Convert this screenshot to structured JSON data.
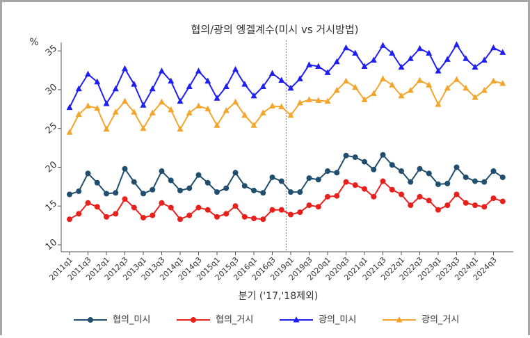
{
  "chart_data": {
    "type": "line",
    "title": "협의/광의 엥겔계수(미시 vs 거시방법)",
    "y_label": "%",
    "x_label": "분기 ('17,'18제외)",
    "categories": [
      "2011q1",
      null,
      "2011q3",
      null,
      "2012q1",
      null,
      "2012q3",
      null,
      "2013q1",
      null,
      "2013q3",
      null,
      "2014q1",
      null,
      "2014q3",
      null,
      "2015q1",
      null,
      "2015q3",
      null,
      "2016q1",
      null,
      "2016q3",
      null,
      "2019q1",
      null,
      "2019q3",
      null,
      "2020q1",
      null,
      "2020q3",
      null,
      "2021q1",
      null,
      "2021q3",
      null,
      "2022q1",
      null,
      "2022q3",
      null,
      "2023q1",
      null,
      "2023q3",
      null,
      "2024q1",
      null,
      "2024q3",
      null
    ],
    "ylim": [
      10,
      36
    ],
    "yticks": [
      10,
      15,
      20,
      25,
      30,
      35
    ],
    "grid": false,
    "series": [
      {
        "name": "협의_미시",
        "color": "#1f4e6e",
        "marker": "circle",
        "values": [
          16.5,
          16.9,
          19.2,
          18.0,
          16.6,
          16.7,
          19.8,
          18.1,
          16.6,
          17.1,
          19.5,
          18.3,
          17.0,
          17.3,
          19.0,
          18.0,
          16.8,
          17.3,
          19.3,
          17.6,
          17.0,
          16.7,
          18.7,
          18.2,
          16.8,
          16.8,
          18.6,
          18.4,
          19.5,
          19.3,
          21.5,
          21.3,
          20.7,
          19.7,
          21.6,
          20.3,
          19.5,
          18.1,
          19.8,
          19.2,
          17.8,
          17.9,
          20.0,
          18.7,
          18.2,
          18.1,
          19.5,
          18.7
        ]
      },
      {
        "name": "협의_거시",
        "color": "#e8201c",
        "marker": "circle",
        "values": [
          13.3,
          14.0,
          15.4,
          14.9,
          13.6,
          14.0,
          15.9,
          14.8,
          13.5,
          13.8,
          15.4,
          14.8,
          13.3,
          13.8,
          14.8,
          14.5,
          13.6,
          14.0,
          15.0,
          13.6,
          13.4,
          13.3,
          14.5,
          14.5,
          13.9,
          14.2,
          15.1,
          14.9,
          16.2,
          16.3,
          18.1,
          17.7,
          17.2,
          16.2,
          18.2,
          17.1,
          16.5,
          15.1,
          16.2,
          15.7,
          14.5,
          15.1,
          16.5,
          15.4,
          15.1,
          14.9,
          16.0,
          15.6
        ]
      },
      {
        "name": "광의_미시",
        "color": "#1f1ff0",
        "marker": "triangle",
        "values": [
          27.7,
          30.1,
          32.0,
          31.0,
          28.2,
          30.1,
          32.7,
          30.7,
          28.0,
          30.1,
          32.4,
          31.1,
          28.5,
          30.4,
          32.4,
          31.1,
          28.9,
          30.4,
          32.6,
          30.7,
          29.2,
          30.4,
          32.1,
          31.2,
          30.2,
          31.4,
          33.2,
          33.0,
          32.2,
          33.6,
          35.4,
          34.7,
          33.0,
          33.8,
          35.7,
          34.7,
          32.9,
          34.0,
          35.3,
          34.7,
          32.4,
          33.9,
          35.8,
          34.0,
          32.9,
          33.8,
          35.4,
          34.8
        ]
      },
      {
        "name": "광의_거시",
        "color": "#f4a52b",
        "marker": "triangle",
        "values": [
          24.5,
          26.8,
          27.9,
          27.6,
          24.9,
          27.1,
          28.5,
          27.1,
          25.0,
          27.0,
          28.4,
          27.4,
          24.9,
          27.0,
          27.9,
          27.5,
          25.4,
          27.3,
          28.4,
          26.7,
          25.4,
          27.0,
          27.9,
          27.8,
          26.7,
          28.3,
          28.7,
          28.6,
          28.5,
          29.9,
          31.1,
          30.3,
          28.7,
          29.5,
          31.4,
          30.6,
          29.2,
          29.9,
          31.2,
          30.6,
          28.1,
          30.2,
          31.3,
          30.2,
          29.0,
          29.9,
          31.1,
          30.8
        ]
      }
    ]
  }
}
